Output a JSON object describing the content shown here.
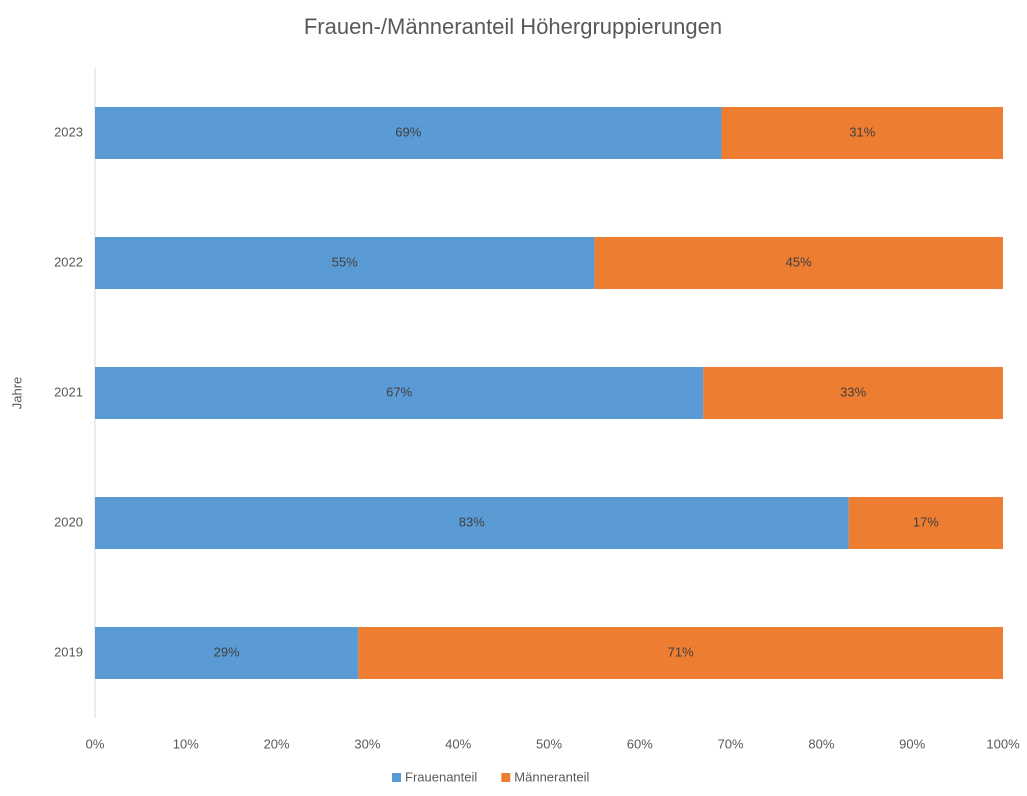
{
  "chart_data": {
    "type": "stacked-bar-horizontal",
    "title": "Frauen-/Männeranteil Höhergruppierungen",
    "y_label": "Jahre",
    "categories": [
      "2019",
      "2020",
      "2021",
      "2022",
      "2023"
    ],
    "series": [
      {
        "name": "Frauenanteil",
        "color": "#5b9bd5",
        "values": [
          29,
          83,
          67,
          55,
          69
        ],
        "value_labels": [
          "29%",
          "83%",
          "67%",
          "55%",
          "69%"
        ]
      },
      {
        "name": "Männeranteil",
        "color": "#ed7d31",
        "values": [
          71,
          17,
          33,
          45,
          31
        ],
        "value_labels": [
          "71%",
          "17%",
          "33%",
          "45%",
          "31%"
        ]
      }
    ],
    "xlim": [
      0,
      100
    ],
    "xticks": [
      {
        "value": 0,
        "label": "0%"
      },
      {
        "value": 10,
        "label": "10%"
      },
      {
        "value": 20,
        "label": "20%"
      },
      {
        "value": 30,
        "label": "30%"
      },
      {
        "value": 40,
        "label": "40%"
      },
      {
        "value": 50,
        "label": "50%"
      },
      {
        "value": 60,
        "label": "60%"
      },
      {
        "value": 70,
        "label": "70%"
      },
      {
        "value": 80,
        "label": "80%"
      },
      {
        "value": 90,
        "label": "90%"
      },
      {
        "value": 100,
        "label": "100%"
      }
    ],
    "grid": false,
    "legend": "bottom"
  }
}
